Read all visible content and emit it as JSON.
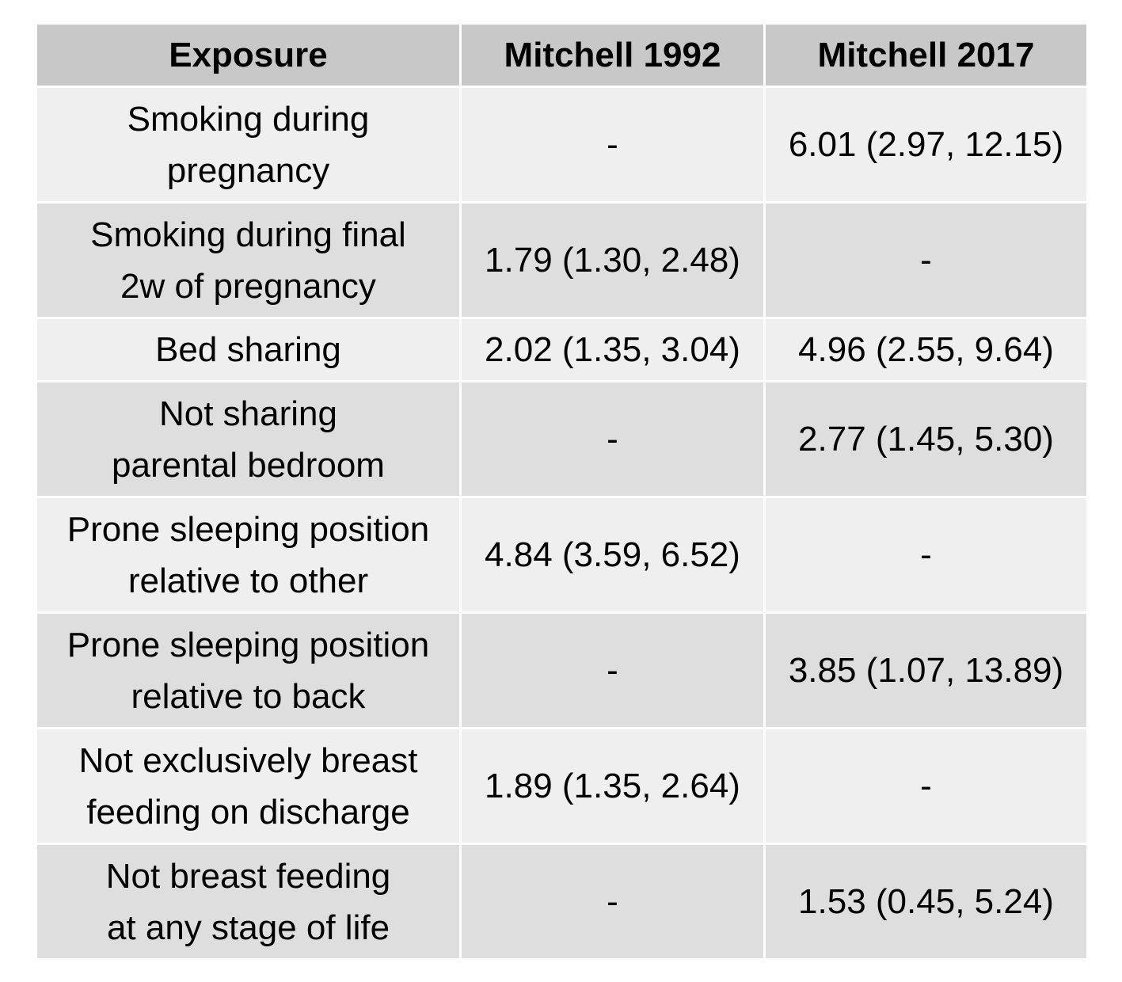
{
  "table": {
    "headers": [
      "Exposure",
      "Mitchell 1992",
      "Mitchell 2017"
    ],
    "rows": [
      {
        "exposure": "Smoking during\npregnancy",
        "m1992": "-",
        "m2017": "6.01 (2.97, 12.15)"
      },
      {
        "exposure": "Smoking during final\n2w of pregnancy",
        "m1992": "1.79 (1.30, 2.48)",
        "m2017": "-"
      },
      {
        "exposure": "Bed sharing",
        "m1992": "2.02 (1.35, 3.04)",
        "m2017": "4.96 (2.55, 9.64)"
      },
      {
        "exposure": "Not sharing\nparental bedroom",
        "m1992": "-",
        "m2017": "2.77 (1.45, 5.30)"
      },
      {
        "exposure": "Prone sleeping position\nrelative to other",
        "m1992": "4.84 (3.59, 6.52)",
        "m2017": "-"
      },
      {
        "exposure": "Prone sleeping position\nrelative to back",
        "m1992": "-",
        "m2017": "3.85 (1.07, 13.89)"
      },
      {
        "exposure": "Not exclusively breast\nfeeding on discharge",
        "m1992": "1.89 (1.35, 2.64)",
        "m2017": "-"
      },
      {
        "exposure": "Not breast feeding\nat any stage of life",
        "m1992": "-",
        "m2017": "1.53 (0.45, 5.24)"
      }
    ]
  },
  "colors": {
    "header_bg": "#c8c8c8",
    "row_light": "#efefef",
    "row_dark": "#dedede",
    "grid_line": "#ffffff"
  }
}
